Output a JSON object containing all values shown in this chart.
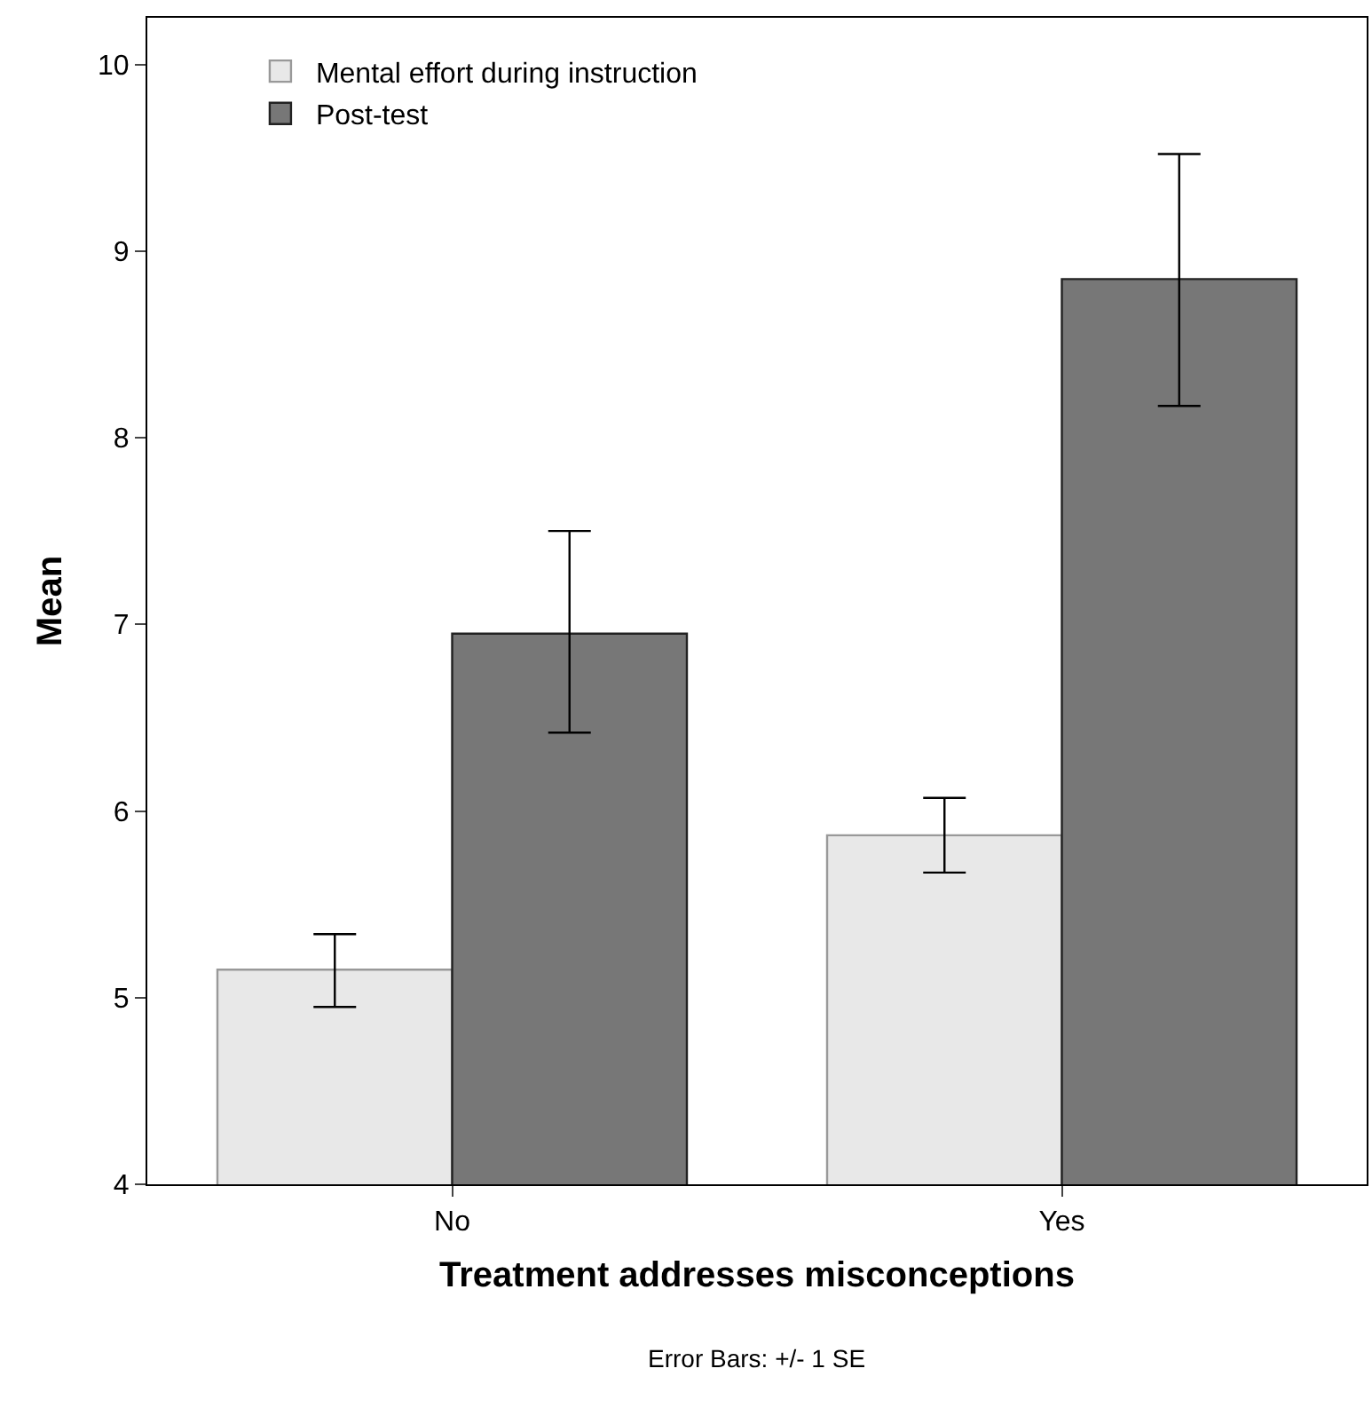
{
  "chart_data": {
    "type": "bar",
    "xlabel": "Treatment addresses misconceptions",
    "ylabel": "Mean",
    "categories": [
      "No",
      "Yes"
    ],
    "series": [
      {
        "name": "Mental effort during instruction",
        "color": "#e8e8e8",
        "values": [
          5.15,
          5.87
        ],
        "errors": [
          [
            4.95,
            5.34
          ],
          [
            5.67,
            6.07
          ]
        ]
      },
      {
        "name": "Post-test",
        "color": "#777777",
        "values": [
          6.95,
          8.85
        ],
        "errors": [
          [
            6.42,
            7.5
          ],
          [
            8.17,
            9.52
          ]
        ]
      }
    ],
    "ylim": [
      4,
      10.25
    ],
    "yticks": [
      4,
      5,
      6,
      7,
      8,
      9,
      10
    ],
    "grid": false,
    "legend": "top left",
    "annotations": [
      "Error Bars: +/- 1 SE"
    ]
  }
}
